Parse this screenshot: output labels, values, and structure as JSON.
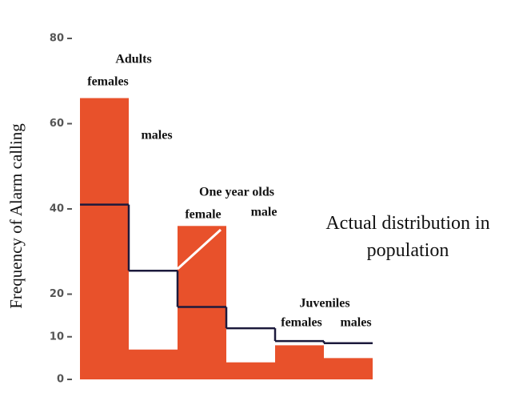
{
  "chart_data": {
    "type": "bar",
    "y_label": "Frequency of Alarm calling",
    "categories": [
      "females",
      "males",
      "female",
      "male",
      "females",
      "males"
    ],
    "groups": [
      {
        "label": "Adults",
        "members": [
          0,
          1
        ]
      },
      {
        "label": "One year olds",
        "members": [
          2,
          3
        ]
      },
      {
        "label": "Juveniles",
        "members": [
          4,
          5
        ]
      }
    ],
    "series": [
      {
        "color": "#e8512b",
        "values": [
          66,
          7,
          36,
          4,
          8,
          5
        ]
      },
      {
        "name": "Actual distribution in population",
        "type": "step",
        "color": "#1c1a3c",
        "values": [
          41,
          25.5,
          17,
          12,
          9,
          8.5
        ]
      }
    ],
    "ylim": [
      0,
      80
    ],
    "yticks": [
      0,
      10,
      20,
      40,
      60,
      80
    ]
  }
}
